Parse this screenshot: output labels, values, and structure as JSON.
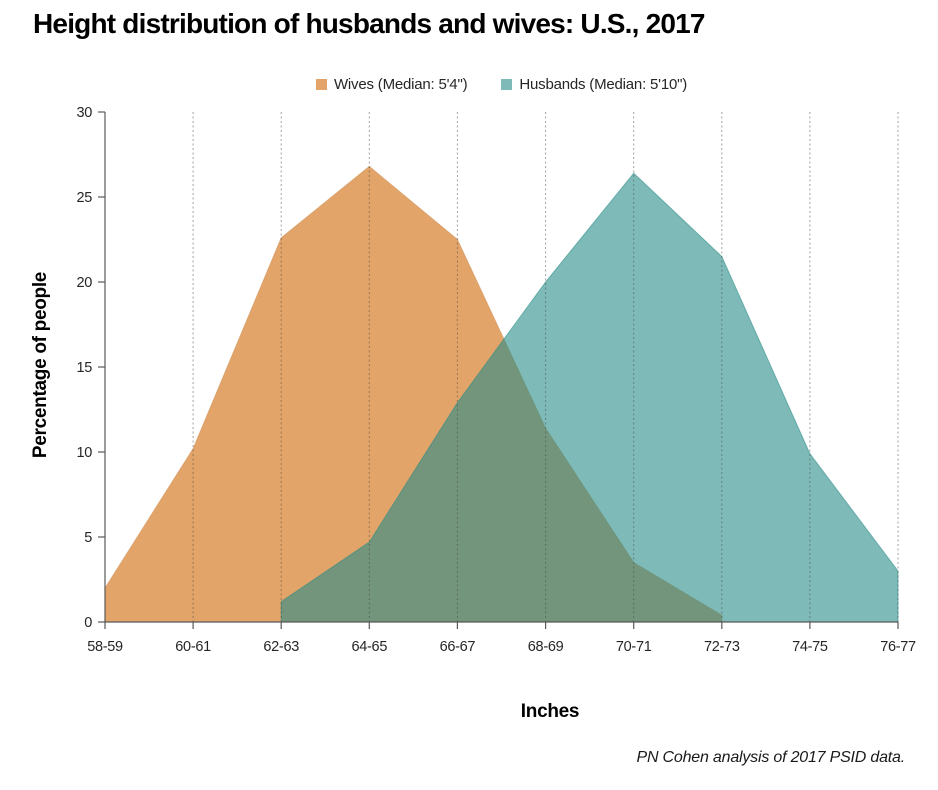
{
  "title": "Height distribution of husbands and wives: U.S., 2017",
  "legend": [
    {
      "label": "Wives (Median: 5'4\")",
      "color": "#E2A469"
    },
    {
      "label": "Husbands (Median: 5'10\")",
      "color": "#7EBAB7"
    }
  ],
  "footer": "PN Cohen analysis of 2017 PSID data.",
  "chart_data": {
    "type": "area",
    "title": "Height distribution of husbands and wives: U.S., 2017",
    "xlabel": "Inches",
    "ylabel": "Percentage of people",
    "categories": [
      "58-59",
      "60-61",
      "62-63",
      "64-65",
      "66-67",
      "68-69",
      "70-71",
      "72-73",
      "74-75",
      "76-77"
    ],
    "series": [
      {
        "name": "Wives (Median: 5'4\")",
        "values": [
          2.0,
          10.2,
          22.6,
          26.8,
          22.5,
          11.4,
          3.5,
          0.4,
          null,
          null
        ],
        "fill": "#E2A469",
        "stroke": "#CE9055",
        "opacity": 1
      },
      {
        "name": "Husbands (Median: 5'10\")",
        "values": [
          null,
          null,
          1.2,
          4.7,
          12.9,
          20.0,
          26.4,
          21.5,
          9.9,
          3.0
        ],
        "fill": "#288C87",
        "stroke": "#288C87",
        "opacity": 0.6
      }
    ],
    "ylim": [
      0,
      30
    ],
    "ytick_step": 5,
    "grid": "vertical-dashed",
    "legend_position": "top-center",
    "axis_color": "#595959",
    "gridline_color": "rgba(70,70,70,0.5)"
  }
}
